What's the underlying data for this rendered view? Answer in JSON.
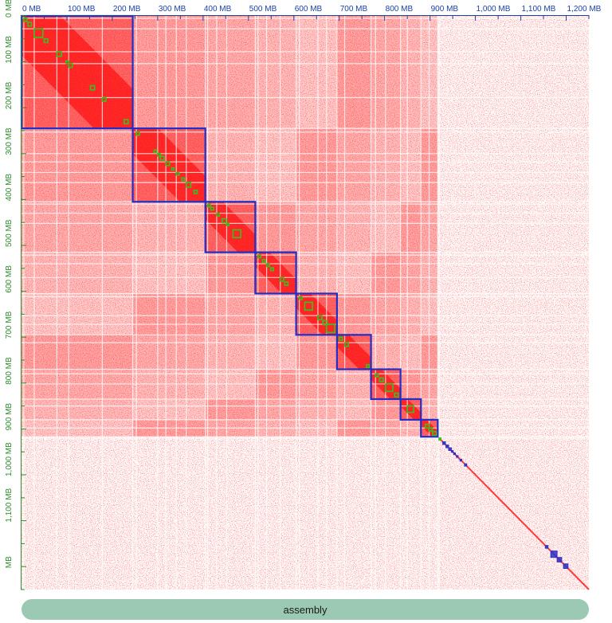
{
  "track": {
    "label": "assembly"
  },
  "colors": {
    "heat": "#ff0000",
    "background": "#ffffff",
    "chromosome_box": "#1f2fc9",
    "contig_box": "#34c31e",
    "small_scaffold": "#2a33c8",
    "top_axis": "#1b3fa8",
    "left_axis": "#2e8b2e",
    "track": "#9cc9b4"
  },
  "chart_data": {
    "type": "heatmap",
    "title": "",
    "xlabel": "",
    "ylabel": "",
    "x_range_mb": [
      0,
      1250
    ],
    "y_range_mb": [
      0,
      1250
    ],
    "x_tick_labels": [
      "0 MB",
      "100 MB",
      "200 MB",
      "300 MB",
      "400 MB",
      "500 MB",
      "600 MB",
      "700 MB",
      "800 MB",
      "900 MB",
      "1,000 MB",
      "1,100 MB",
      "1,200 MB"
    ],
    "y_tick_labels": [
      "0 MB",
      "100 MB",
      "200 MB",
      "300 MB",
      "400 MB",
      "500 MB",
      "600 MB",
      "700 MB",
      "800 MB",
      "900 MB",
      "1,000 MB",
      "1,100 MB",
      "MB"
    ],
    "chromosomes_mb": [
      {
        "start": 0,
        "end": 245
      },
      {
        "start": 245,
        "end": 405
      },
      {
        "start": 405,
        "end": 515
      },
      {
        "start": 515,
        "end": 605
      },
      {
        "start": 605,
        "end": 695
      },
      {
        "start": 695,
        "end": 770
      },
      {
        "start": 770,
        "end": 835
      },
      {
        "start": 835,
        "end": 880
      },
      {
        "start": 880,
        "end": 917
      }
    ],
    "contigs_mb": [
      [
        5,
        12
      ],
      [
        14,
        22
      ],
      [
        28,
        47
      ],
      [
        50,
        58
      ],
      [
        78,
        88
      ],
      [
        98,
        104
      ],
      [
        104,
        112
      ],
      [
        152,
        161
      ],
      [
        178,
        186
      ],
      [
        226,
        235
      ],
      [
        253,
        260
      ],
      [
        292,
        298
      ],
      [
        300,
        306
      ],
      [
        306,
        314
      ],
      [
        318,
        326
      ],
      [
        331,
        336
      ],
      [
        341,
        347
      ],
      [
        353,
        359
      ],
      [
        363,
        373
      ],
      [
        380,
        387
      ],
      [
        410,
        416
      ],
      [
        417,
        423
      ],
      [
        430,
        436
      ],
      [
        442,
        451
      ],
      [
        452,
        457
      ],
      [
        466,
        483
      ],
      [
        521,
        527
      ],
      [
        531,
        537
      ],
      [
        540,
        546
      ],
      [
        549,
        555
      ],
      [
        570,
        578
      ],
      [
        580,
        587
      ],
      [
        612,
        618
      ],
      [
        624,
        641
      ],
      [
        653,
        662
      ],
      [
        664,
        673
      ],
      [
        672,
        690
      ],
      [
        700,
        707
      ],
      [
        712,
        720
      ],
      [
        760,
        766
      ],
      [
        780,
        786
      ],
      [
        789,
        797
      ],
      [
        802,
        818
      ],
      [
        822,
        830
      ],
      [
        850,
        864
      ],
      [
        890,
        898
      ],
      [
        898,
        905
      ],
      [
        906,
        914
      ],
      [
        920,
        924
      ]
    ],
    "small_scaffolds_mb": [
      [
        928,
        934
      ],
      [
        935,
        941
      ],
      [
        941,
        947
      ],
      [
        947,
        951
      ],
      [
        952,
        956
      ],
      [
        958,
        962
      ],
      [
        966,
        970
      ],
      [
        976,
        981
      ],
      [
        1154,
        1160
      ],
      [
        1166,
        1180
      ],
      [
        1180,
        1190
      ],
      [
        1194,
        1204
      ]
    ]
  }
}
